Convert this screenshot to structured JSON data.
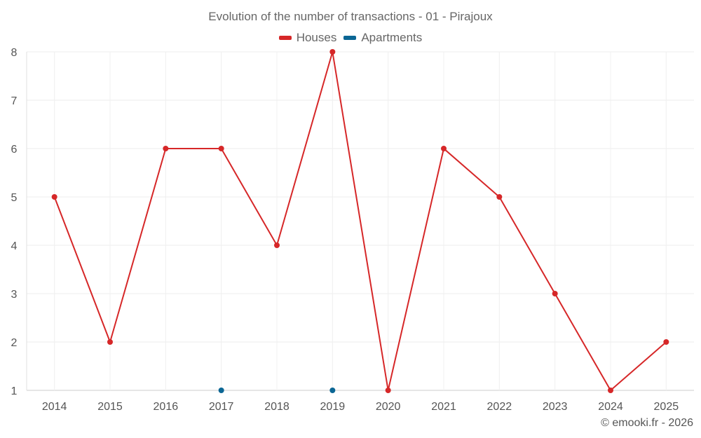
{
  "chart_data": {
    "type": "line",
    "title": "Evolution of the number of transactions - 01 - Pirajoux",
    "categories": [
      "2014",
      "2015",
      "2016",
      "2017",
      "2018",
      "2019",
      "2020",
      "2021",
      "2022",
      "2023",
      "2024",
      "2025"
    ],
    "ylim": [
      1,
      8
    ],
    "yticks": [
      1,
      2,
      3,
      4,
      5,
      6,
      7,
      8
    ],
    "grid": true,
    "legend_position": "top-center",
    "series": [
      {
        "name": "Houses",
        "color": "#d62728",
        "values": [
          5,
          2,
          6,
          6,
          4,
          8,
          1,
          6,
          5,
          3,
          1,
          2
        ]
      },
      {
        "name": "Apartments",
        "color": "#0b6694",
        "values": [
          null,
          null,
          null,
          1,
          null,
          1,
          null,
          null,
          null,
          null,
          null,
          null
        ]
      }
    ]
  },
  "footer": {
    "credit": "© emooki.fr - 2026"
  }
}
